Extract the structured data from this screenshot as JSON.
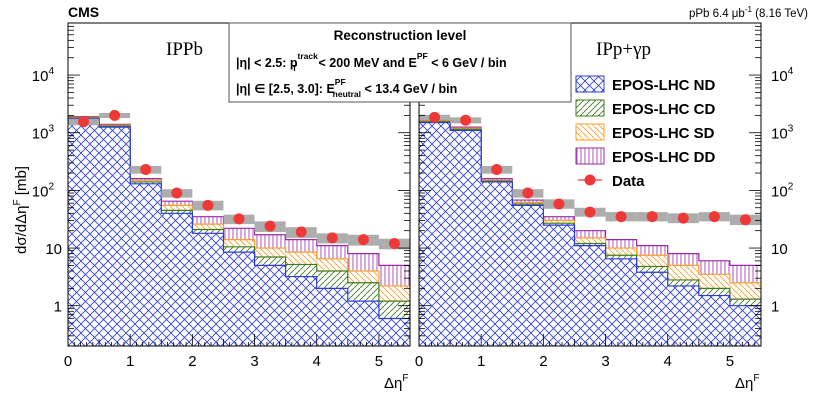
{
  "header": {
    "experiment": "CMS",
    "run_prefix": "pPb 6.4 μb",
    "run_exp": "-1",
    "run_suffix": " (8.16 TeV)"
  },
  "panels": [
    {
      "label": "IPPb"
    },
    {
      "label": "IPp+γp"
    }
  ],
  "selection_box": {
    "title": "Reconstruction level",
    "line1": {
      "a": "|η| < 2.5: p",
      "a_sup": "track",
      "a_sub": "T",
      "b": " < 200 MeV  and  E",
      "b_sup": "PF",
      "c": " < 6 GeV / bin"
    },
    "line2": {
      "a": "|η| ∈ [2.5, 3.0]: E",
      "a_sup": "PF",
      "a_sub": "neutral",
      "b": " < 13.4 GeV / bin"
    }
  },
  "colors": {
    "ND": "#2b3bd8",
    "CD": "#3f7a1e",
    "SD": "#ff9f2a",
    "DD": "#9b2aa9",
    "data": "#ef3838",
    "band": "#a9a9a9"
  },
  "chart_data": [
    {
      "type": "stacked-histogram-with-points",
      "panel": "IPPb",
      "xlabel": "Δη",
      "xlabel_sup": "F",
      "ylabel": "dσ/dΔη",
      "ylabel_sup": "F",
      "ylabel_unit": " [mb]",
      "yscale": "log",
      "xlim": [
        0,
        5.5
      ],
      "ylim": [
        0.2,
        80000
      ],
      "x_ticks": [
        "0",
        "1",
        "2",
        "3",
        "4",
        "5"
      ],
      "y_ticks": [
        "1",
        "10",
        "10",
        "10",
        "10"
      ],
      "y_tick_exps": [
        "",
        "",
        "2",
        "3",
        "4"
      ],
      "y_tick_values": [
        1,
        10,
        100,
        1000,
        10000
      ],
      "bin_edges": [
        0,
        0.5,
        1,
        1.5,
        2,
        2.5,
        3,
        3.5,
        4,
        4.5,
        5,
        5.5
      ],
      "series": [
        {
          "name": "EPOS-LHC ND",
          "key": "ND",
          "cumulative": [
            1750,
            1250,
            130,
            40,
            18,
            8.5,
            5.0,
            3.2,
            2.0,
            1.2,
            0.6
          ]
        },
        {
          "name": "EPOS-LHC CD",
          "key": "CD",
          "cumulative": [
            1800,
            1300,
            140,
            45,
            21,
            10.5,
            7.0,
            5.2,
            4.0,
            2.5,
            1.2
          ]
        },
        {
          "name": "EPOS-LHC SD",
          "key": "SD",
          "cumulative": [
            1850,
            1350,
            150,
            55,
            26,
            14,
            10,
            8.5,
            6.5,
            4.0,
            2.2
          ]
        },
        {
          "name": "EPOS-LHC DD",
          "key": "DD",
          "cumulative": [
            1900,
            1400,
            160,
            65,
            35,
            22,
            17,
            14,
            11,
            8,
            5
          ]
        }
      ],
      "data": {
        "name": "Data",
        "x": [
          0.25,
          0.75,
          1.25,
          1.75,
          2.25,
          2.75,
          3.25,
          3.75,
          4.25,
          4.75,
          5.25
        ],
        "y": [
          1550,
          2000,
          230,
          90,
          55,
          32,
          24,
          19,
          15,
          14,
          12
        ],
        "unc_low": [
          1350,
          1800,
          195,
          75,
          45,
          26,
          19,
          15,
          12,
          11,
          9.5
        ],
        "unc_high": [
          1750,
          2200,
          265,
          105,
          66,
          38,
          29,
          23,
          18,
          17,
          14.5
        ]
      }
    },
    {
      "type": "stacked-histogram-with-points",
      "panel": "IPp+γp",
      "xlabel": "Δη",
      "xlabel_sup": "F",
      "yscale": "log",
      "xlim": [
        0,
        5.5
      ],
      "ylim": [
        0.2,
        80000
      ],
      "x_ticks": [
        "0",
        "1",
        "2",
        "3",
        "4",
        "5"
      ],
      "y_ticks": [
        "1",
        "10",
        "10",
        "10",
        "10"
      ],
      "y_tick_exps": [
        "",
        "",
        "2",
        "3",
        "4"
      ],
      "y_tick_values": [
        1,
        10,
        100,
        1000,
        10000
      ],
      "bin_edges": [
        0,
        0.5,
        1,
        1.5,
        2,
        2.5,
        3,
        3.5,
        4,
        4.5,
        5,
        5.5
      ],
      "series": [
        {
          "name": "EPOS-LHC ND",
          "key": "ND",
          "cumulative": [
            1500,
            1100,
            140,
            55,
            25,
            11,
            6.5,
            3.8,
            2.2,
            1.5,
            1.0
          ]
        },
        {
          "name": "EPOS-LHC CD",
          "key": "CD",
          "cumulative": [
            1550,
            1150,
            145,
            58,
            27,
            12,
            7.5,
            4.8,
            2.8,
            2.0,
            1.3
          ]
        },
        {
          "name": "EPOS-LHC SD",
          "key": "SD",
          "cumulative": [
            1600,
            1200,
            150,
            62,
            30,
            15,
            10,
            7.5,
            5.0,
            3.5,
            2.5
          ]
        },
        {
          "name": "EPOS-LHC DD",
          "key": "DD",
          "cumulative": [
            1650,
            1250,
            160,
            68,
            35,
            20,
            14,
            11,
            8.0,
            6.0,
            5.0
          ]
        }
      ],
      "data": {
        "name": "Data",
        "x": [
          0.25,
          0.75,
          1.25,
          1.75,
          2.25,
          2.75,
          3.25,
          3.75,
          4.25,
          4.75,
          5.25
        ],
        "y": [
          1850,
          1650,
          230,
          90,
          58,
          42,
          35,
          35,
          33,
          35,
          31
        ],
        "unc_low": [
          1650,
          1450,
          195,
          75,
          48,
          35,
          29,
          29,
          27,
          29,
          25
        ],
        "unc_high": [
          2050,
          1850,
          265,
          105,
          70,
          50,
          42,
          42,
          40,
          42,
          38
        ]
      }
    }
  ],
  "legend": [
    {
      "label": "EPOS-LHC ND",
      "key": "ND"
    },
    {
      "label": "EPOS-LHC CD",
      "key": "CD"
    },
    {
      "label": "EPOS-LHC SD",
      "key": "SD"
    },
    {
      "label": "EPOS-LHC DD",
      "key": "DD"
    },
    {
      "label": "Data",
      "key": "data"
    }
  ]
}
